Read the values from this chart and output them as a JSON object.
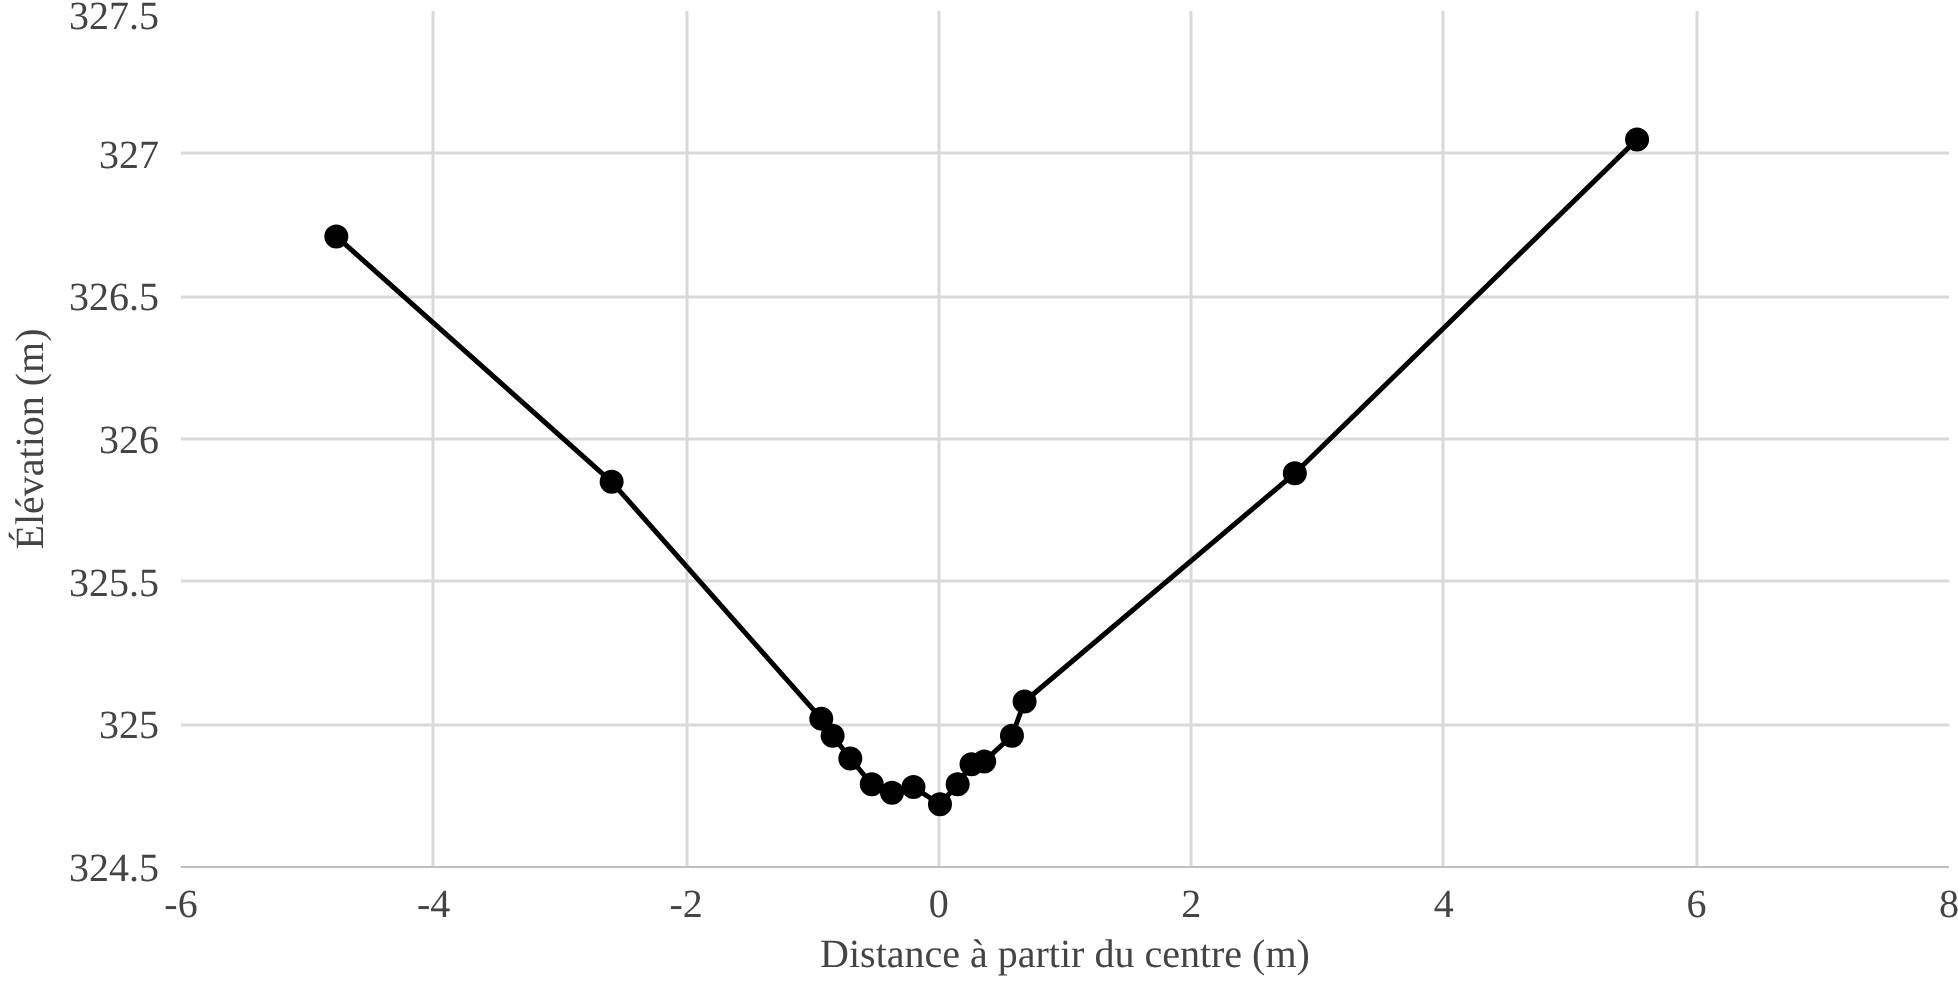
{
  "chart_data": {
    "type": "line",
    "xlabel": "Distance à partir du centre (m)",
    "ylabel": "Élévation (m)",
    "xlim": [
      -6,
      8
    ],
    "xticks": [
      -6,
      -4,
      -2,
      0,
      2,
      4,
      6,
      8
    ],
    "ylim": [
      324.5,
      327.5
    ],
    "yticks": [
      324.5,
      325,
      325.5,
      326,
      326.5,
      327,
      327.5
    ],
    "grid": true,
    "marker": "circle",
    "line_style": "solid",
    "series": [
      {
        "color": "#000000",
        "x": [
          -4.77,
          -2.59,
          -0.93,
          -0.84,
          -0.7,
          -0.53,
          -0.37,
          -0.2,
          0.01,
          0.15,
          0.26,
          0.36,
          0.58,
          0.68,
          2.82,
          5.53
        ],
        "values": [
          326.71,
          325.85,
          325.02,
          324.96,
          324.88,
          324.79,
          324.76,
          324.78,
          324.72,
          324.79,
          324.86,
          324.87,
          324.96,
          325.08,
          325.88,
          327.05
        ]
      }
    ]
  }
}
